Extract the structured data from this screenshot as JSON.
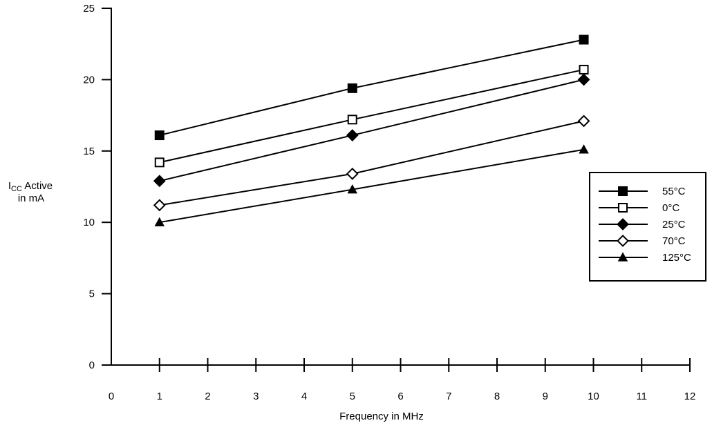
{
  "chart_data": {
    "type": "line",
    "title": "",
    "ylabel_main": "I",
    "ylabel_sub": "CC",
    "ylabel_rest": " Active",
    "ylabel_line2": "in mA",
    "xlabel": "Frequency in MHz",
    "xlim": [
      0,
      12
    ],
    "ylim": [
      0,
      25
    ],
    "xticks": [
      "0",
      "1",
      "2",
      "3",
      "4",
      "5",
      "6",
      "7",
      "8",
      "9",
      "10",
      "11",
      "12"
    ],
    "yticks": [
      "0",
      "5",
      "10",
      "15",
      "20",
      "25"
    ],
    "grid": false,
    "legend_position": "right",
    "series": [
      {
        "name": "55°C",
        "marker": "square-filled",
        "x": [
          1,
          5,
          9.8
        ],
        "y": [
          16.1,
          19.4,
          22.8
        ]
      },
      {
        "name": "0°C",
        "marker": "square-open",
        "x": [
          1,
          5,
          9.8
        ],
        "y": [
          14.2,
          17.2,
          20.7
        ]
      },
      {
        "name": "25°C",
        "marker": "diamond-filled",
        "x": [
          1,
          5,
          9.8
        ],
        "y": [
          12.9,
          16.1,
          20.0
        ]
      },
      {
        "name": "70°C",
        "marker": "diamond-open",
        "x": [
          1,
          5,
          9.8
        ],
        "y": [
          11.2,
          13.4,
          17.1
        ]
      },
      {
        "name": "125°C",
        "marker": "triangle-filled",
        "x": [
          1,
          5,
          9.8
        ],
        "y": [
          10.0,
          12.3,
          15.1
        ]
      }
    ]
  }
}
